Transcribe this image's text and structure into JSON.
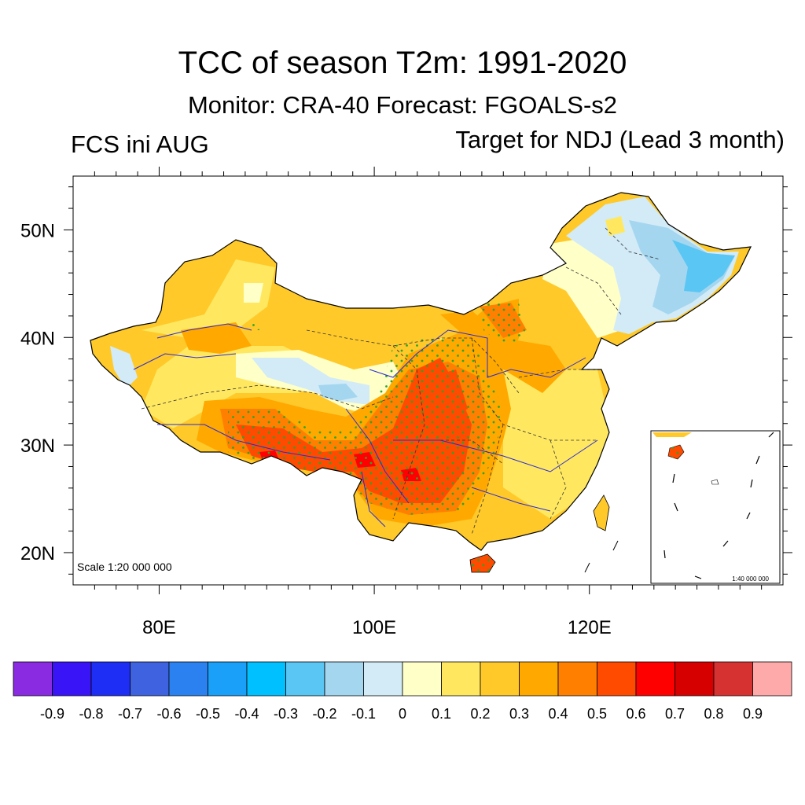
{
  "title": "TCC of season T2m: 1991-2020",
  "subtitle": "Monitor: CRA-40   Forecast: FGOALS-s2",
  "left_label": "FCS ini AUG",
  "right_label": "Target for NDJ (Lead 3 month)",
  "scale_main": "Scale 1:20 000 000",
  "scale_inset": "1:40 000 000",
  "map": {
    "lon_range": [
      72,
      138
    ],
    "lat_range": [
      17,
      55
    ],
    "lat_ticks": [
      {
        "value": 20,
        "label": "20N"
      },
      {
        "value": 30,
        "label": "30N"
      },
      {
        "value": 40,
        "label": "40N"
      },
      {
        "value": 50,
        "label": "50N"
      }
    ],
    "lon_ticks": [
      {
        "value": 80,
        "label": "80E"
      },
      {
        "value": 100,
        "label": "100E"
      },
      {
        "value": 120,
        "label": "120E"
      }
    ],
    "stippling": "green dots mark significant correlation"
  },
  "colorbar": {
    "colors": [
      "#8a2be2",
      "#3814f7",
      "#1e2ef4",
      "#3f63e0",
      "#2b81f0",
      "#1aa0f8",
      "#00c0ff",
      "#5ac6f4",
      "#a4d6f0",
      "#d2ebf7",
      "#ffffc8",
      "#ffe860",
      "#ffc92a",
      "#ffa800",
      "#ff8000",
      "#ff4b00",
      "#ff0000",
      "#d70000",
      "#d73232",
      "#ffaaaa"
    ],
    "labels": [
      "-0.9",
      "-0.8",
      "-0.7",
      "-0.6",
      "-0.5",
      "-0.4",
      "-0.3",
      "-0.2",
      "-0.1",
      "0",
      "0.1",
      "0.2",
      "0.3",
      "0.4",
      "0.5",
      "0.6",
      "0.7",
      "0.8",
      "0.9"
    ]
  }
}
